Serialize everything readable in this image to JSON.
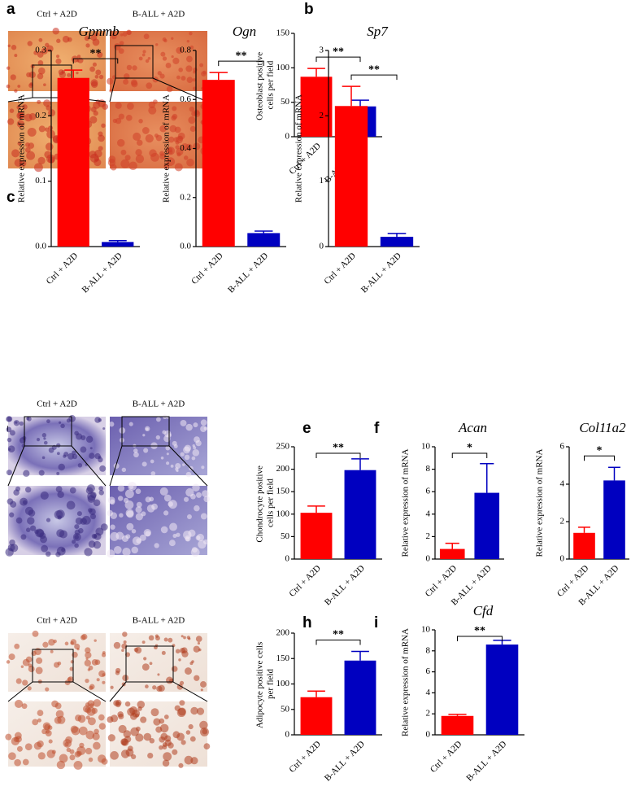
{
  "image_panels": [
    {
      "letter": "a",
      "labels": [
        "Ctrl + A2D",
        "B-ALL + A2D"
      ]
    },
    {
      "letter": "d",
      "labels": [
        "Ctrl + A2D",
        "B-ALL + A2D"
      ]
    },
    {
      "labels": [
        "Ctrl + A2D",
        "B-ALL + A2D"
      ]
    }
  ],
  "chart_data": [
    {
      "type": "bar",
      "panel": "b",
      "y_label": "Osteoblast positive cells per field",
      "categories": [
        "Ctrl + A2D",
        "B-ALL + A2D"
      ],
      "values": [
        87,
        44
      ],
      "errors": [
        12,
        9
      ],
      "colors": [
        "#ff0000",
        "#0000c0"
      ],
      "ylim": [
        0,
        150
      ],
      "yticks": [
        0,
        50,
        100,
        150
      ],
      "significance": "**"
    },
    {
      "type": "bar",
      "panel": "c",
      "title": "Gpnmb",
      "y_label": "Relative expression of mRNA",
      "categories": [
        "Ctrl + A2D",
        "B-ALL + A2D"
      ],
      "values": [
        0.258,
        0.007
      ],
      "errors": [
        0.012,
        0.002
      ],
      "colors": [
        "#ff0000",
        "#0000c0"
      ],
      "ylim": [
        0,
        0.3
      ],
      "yticks": [
        {
          "value": 0,
          "label": "0.0"
        },
        0.1,
        0.2,
        0.3
      ],
      "significance": "**"
    },
    {
      "type": "bar",
      "title": "Ogn",
      "y_label": "Relative expression of mRNA",
      "categories": [
        "Ctrl + A2D",
        "B-ALL + A2D"
      ],
      "values": [
        0.68,
        0.055
      ],
      "errors": [
        0.03,
        0.008
      ],
      "colors": [
        "#ff0000",
        "#0000c0"
      ],
      "ylim": [
        0,
        0.8
      ],
      "yticks": [
        {
          "value": 0,
          "label": "0.0"
        },
        0.2,
        0.4,
        0.6,
        0.8
      ],
      "significance": "**"
    },
    {
      "type": "bar",
      "title": "Sp7",
      "y_label": "Relative expression of mRNA",
      "categories": [
        "Ctrl + A2D",
        "B-ALL + A2D"
      ],
      "values": [
        2.15,
        0.15
      ],
      "errors": [
        0.3,
        0.05
      ],
      "colors": [
        "#ff0000",
        "#0000c0"
      ],
      "ylim": [
        0,
        3
      ],
      "yticks": [
        0,
        1,
        2,
        3
      ],
      "significance": "**"
    },
    {
      "type": "bar",
      "panel": "e",
      "y_label": "Chondrocyte positive cells per field",
      "categories": [
        "Ctrl + A2D",
        "B-ALL + A2D"
      ],
      "values": [
        103,
        198
      ],
      "errors": [
        15,
        25
      ],
      "colors": [
        "#ff0000",
        "#0000c0"
      ],
      "ylim": [
        0,
        250
      ],
      "yticks": [
        0,
        50,
        100,
        150,
        200,
        250
      ],
      "significance": "**"
    },
    {
      "type": "bar",
      "panel": "f",
      "title": "Acan",
      "y_label": "Relative expression of mRNA",
      "categories": [
        "Ctrl + A2D",
        "B-ALL + A2D"
      ],
      "values": [
        0.9,
        5.9
      ],
      "errors": [
        0.5,
        2.6
      ],
      "colors": [
        "#ff0000",
        "#0000c0"
      ],
      "ylim": [
        0,
        10
      ],
      "yticks": [
        0,
        2,
        4,
        6,
        8,
        10
      ],
      "significance": "*"
    },
    {
      "type": "bar",
      "title": "Col11a2",
      "y_label": "Relative expression of mRNA",
      "categories": [
        "Ctrl + A2D",
        "B-ALL + A2D"
      ],
      "values": [
        1.4,
        4.2
      ],
      "errors": [
        0.3,
        0.7
      ],
      "colors": [
        "#ff0000",
        "#0000c0"
      ],
      "ylim": [
        0,
        6
      ],
      "yticks": [
        0,
        2,
        4,
        6
      ],
      "significance": "*"
    },
    {
      "type": "bar",
      "panel": "h",
      "y_label": "Adipocyte positive cells per field",
      "categories": [
        "Ctrl + A2D",
        "B-ALL + A2D"
      ],
      "values": [
        74,
        146
      ],
      "errors": [
        12,
        18
      ],
      "colors": [
        "#ff0000",
        "#0000c0"
      ],
      "ylim": [
        0,
        200
      ],
      "yticks": [
        0,
        50,
        100,
        150,
        200
      ],
      "significance": "**"
    },
    {
      "type": "bar",
      "panel": "i",
      "title": "Cfd",
      "y_label": "Relative expression of mRNA",
      "categories": [
        "Ctrl + A2D",
        "B-ALL + A2D"
      ],
      "values": [
        1.8,
        8.6
      ],
      "errors": [
        0.15,
        0.4
      ],
      "colors": [
        "#ff0000",
        "#0000c0"
      ],
      "ylim": [
        0,
        10
      ],
      "yticks": [
        0,
        2,
        4,
        6,
        8,
        10
      ],
      "significance": "**"
    }
  ]
}
